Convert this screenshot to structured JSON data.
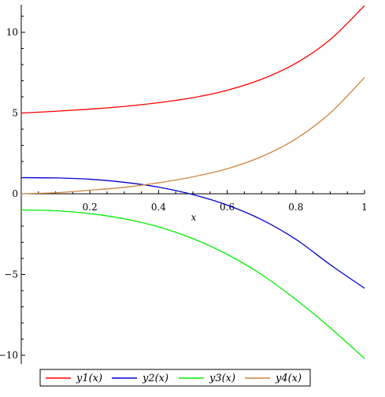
{
  "chart_data": {
    "type": "line",
    "xlabel": "x",
    "ylabel": "",
    "xlim": [
      0,
      1
    ],
    "ylim": [
      -10.3,
      11.6
    ],
    "x_ticks": [
      0.2,
      0.4,
      0.6,
      0.8,
      1
    ],
    "x_tick_labels": [
      "0.2",
      "0.4",
      "0.6",
      "0.8",
      "1"
    ],
    "y_ticks": [
      10,
      5,
      0,
      -5,
      -10
    ],
    "y_tick_labels": [
      "10",
      "5",
      "0",
      "−5",
      "−10"
    ],
    "grid": false,
    "legend_position": "bottom",
    "x": [
      0,
      0.1,
      0.2,
      0.3,
      0.4,
      0.5,
      0.6,
      0.7,
      0.8,
      0.9,
      1
    ],
    "series": [
      {
        "name": "y1(x)",
        "color": "#ff0000",
        "values": [
          5.0,
          5.11,
          5.24,
          5.41,
          5.64,
          5.95,
          6.41,
          7.09,
          8.08,
          9.55,
          11.65
        ]
      },
      {
        "name": "y2(x)",
        "color": "#0000cc",
        "values": [
          1.0,
          0.98,
          0.9,
          0.71,
          0.41,
          -0.05,
          -0.7,
          -1.6,
          -2.82,
          -4.39,
          -5.85
        ]
      },
      {
        "name": "y3(x)",
        "color": "#00ee00",
        "values": [
          -1.0,
          -1.05,
          -1.23,
          -1.55,
          -2.05,
          -2.78,
          -3.75,
          -5.0,
          -6.55,
          -8.3,
          -10.2
        ]
      },
      {
        "name": "y4(x)",
        "color": "#cd853f",
        "values": [
          0.0,
          0.06,
          0.22,
          0.4,
          0.68,
          1.05,
          1.55,
          2.3,
          3.4,
          5.0,
          7.2
        ]
      }
    ]
  }
}
